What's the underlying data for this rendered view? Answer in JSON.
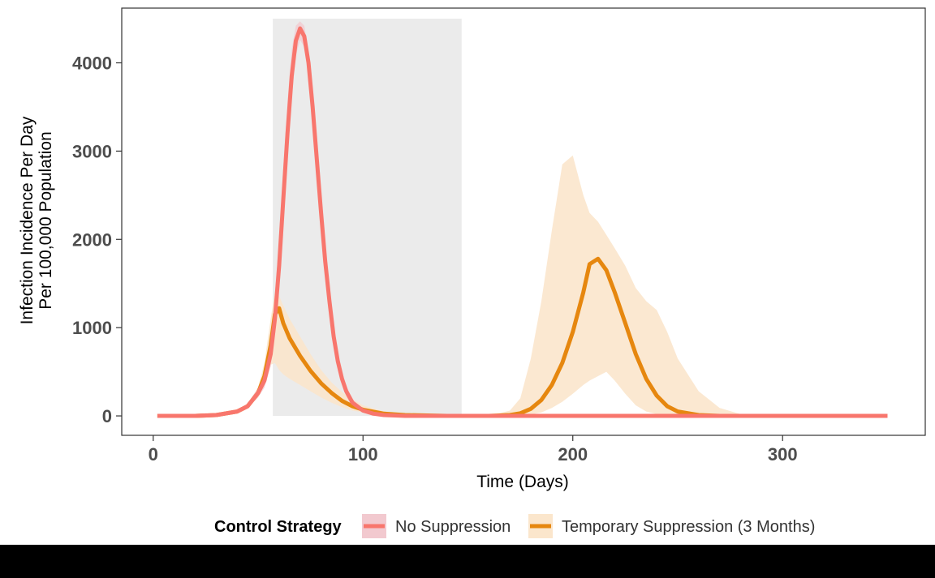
{
  "chart_data": {
    "type": "line",
    "title": "",
    "xlabel": "Time (Days)",
    "ylabel_lines": [
      "Infection Incidence Per Day",
      "Per 100,000 Population"
    ],
    "xlim": [
      -15,
      368
    ],
    "ylim": [
      -220,
      4620
    ],
    "x_ticks": [
      0,
      100,
      200,
      300
    ],
    "y_ticks": [
      0,
      1000,
      2000,
      3000,
      4000
    ],
    "grid": false,
    "shaded_period": {
      "x_start": 57,
      "x_end": 147,
      "y_top": 4500,
      "color": "#ebebeb"
    },
    "legend": {
      "title": "Control Strategy",
      "position": "bottom",
      "entries": [
        "No Suppression",
        "Temporary Suppression (3 Months)"
      ]
    },
    "series": [
      {
        "name": "No Suppression",
        "color": "#f8766d",
        "band_color": "#f2c9cf",
        "x": [
          2,
          20,
          30,
          40,
          45,
          50,
          53,
          56,
          58,
          60,
          62,
          64,
          66,
          68,
          70,
          72,
          74,
          76,
          78,
          80,
          82,
          84,
          86,
          88,
          90,
          92,
          95,
          100,
          105,
          110,
          120,
          150,
          200,
          250,
          300,
          350
        ],
        "values": [
          0,
          0,
          10,
          50,
          110,
          260,
          400,
          700,
          1100,
          1700,
          2450,
          3200,
          3850,
          4250,
          4390,
          4300,
          4000,
          3500,
          2900,
          2300,
          1750,
          1300,
          900,
          620,
          420,
          280,
          150,
          60,
          25,
          10,
          0,
          0,
          0,
          0,
          0,
          0
        ],
        "lower": [
          0,
          0,
          8,
          40,
          90,
          210,
          320,
          560,
          900,
          1450,
          2150,
          2900,
          3600,
          4080,
          4260,
          4180,
          3880,
          3380,
          2780,
          2180,
          1630,
          1180,
          800,
          540,
          350,
          220,
          110,
          40,
          15,
          5,
          0,
          0,
          0,
          0,
          0,
          0
        ],
        "upper": [
          0,
          0,
          14,
          65,
          140,
          320,
          480,
          850,
          1350,
          2000,
          2800,
          3550,
          4150,
          4420,
          4470,
          4420,
          4130,
          3640,
          3040,
          2440,
          1880,
          1420,
          1000,
          710,
          500,
          340,
          190,
          80,
          35,
          15,
          0,
          0,
          0,
          0,
          0,
          0
        ]
      },
      {
        "name": "Temporary Suppression (3 Months)",
        "color": "#e6870f",
        "band_color": "#fbe6cc",
        "x": [
          2,
          20,
          30,
          40,
          45,
          50,
          53,
          56,
          58,
          60,
          62,
          65,
          70,
          75,
          80,
          85,
          90,
          95,
          100,
          110,
          120,
          140,
          160,
          170,
          175,
          180,
          185,
          190,
          195,
          200,
          205,
          208,
          212,
          216,
          220,
          225,
          230,
          235,
          240,
          245,
          250,
          260,
          270,
          280,
          300,
          350
        ],
        "values": [
          0,
          0,
          10,
          50,
          110,
          260,
          450,
          800,
          1150,
          1220,
          1050,
          880,
          680,
          510,
          370,
          260,
          170,
          110,
          70,
          25,
          10,
          0,
          0,
          10,
          30,
          80,
          180,
          350,
          600,
          950,
          1400,
          1720,
          1780,
          1650,
          1400,
          1050,
          700,
          420,
          230,
          110,
          50,
          10,
          0,
          0,
          0,
          0
        ],
        "lower": [
          0,
          0,
          8,
          40,
          90,
          210,
          350,
          580,
          600,
          520,
          470,
          420,
          350,
          280,
          210,
          150,
          100,
          60,
          40,
          10,
          5,
          0,
          0,
          0,
          5,
          15,
          40,
          90,
          160,
          250,
          350,
          400,
          450,
          500,
          400,
          250,
          120,
          50,
          20,
          10,
          0,
          0,
          0,
          0,
          0,
          0
        ],
        "upper": [
          0,
          0,
          14,
          65,
          140,
          320,
          600,
          1100,
          1400,
          1360,
          1250,
          1100,
          900,
          700,
          520,
          380,
          270,
          190,
          120,
          50,
          20,
          0,
          0,
          60,
          200,
          650,
          1300,
          2100,
          2850,
          2950,
          2500,
          2300,
          2200,
          2050,
          1900,
          1700,
          1450,
          1300,
          1200,
          950,
          650,
          280,
          90,
          20,
          0,
          0
        ]
      }
    ]
  }
}
